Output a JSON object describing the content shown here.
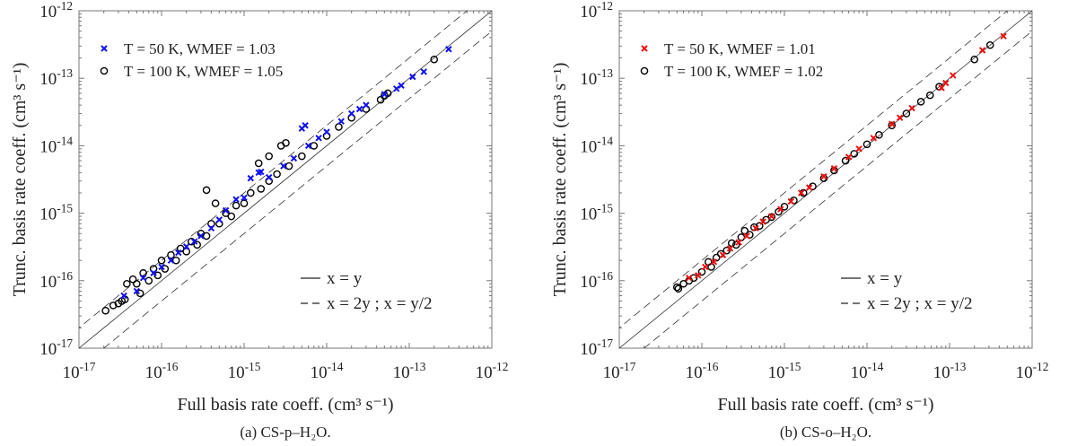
{
  "chart_data": [
    {
      "type": "scatter",
      "caption": "(a) CS-p–H₂O.",
      "xlabel": "Full basis rate coeff. (cm³ s⁻¹)",
      "ylabel": "Trunc. basis rate coeff. (cm³ s⁻¹)",
      "xscale": "log",
      "yscale": "log",
      "xlim": [
        1e-17,
        1e-12
      ],
      "ylim": [
        1e-17,
        1e-12
      ],
      "x_tick_labels": [
        "10^-17",
        "10^-16",
        "10^-15",
        "10^-14",
        "10^-13",
        "10^-12"
      ],
      "y_tick_labels": [
        "10^-17",
        "10^-16",
        "10^-15",
        "10^-14",
        "10^-13",
        "10^-12"
      ],
      "legend_placement": "top-left",
      "lines_legend_placement": "bottom-right",
      "lines": [
        {
          "label": "x = y",
          "style": "solid",
          "factor": 1
        },
        {
          "label": "x = 2y ; x = y/2",
          "style": "dashed",
          "factor": [
            2,
            0.5
          ]
        }
      ],
      "series": [
        {
          "name": "T = 50 K,   WMEF = 1.03",
          "marker": "x",
          "color": "#1010ee",
          "points": [
            [
              3.5e-17,
              6e-17
            ],
            [
              5e-17,
              7e-17
            ],
            [
              6e-17,
              1.1e-16
            ],
            [
              8e-17,
              1.3e-16
            ],
            [
              1e-16,
              1.6e-16
            ],
            [
              1.3e-16,
              2e-16
            ],
            [
              1.6e-16,
              2.6e-16
            ],
            [
              2e-16,
              3.2e-16
            ],
            [
              2.5e-16,
              3.8e-16
            ],
            [
              3e-16,
              4.6e-16
            ],
            [
              4e-16,
              6e-16
            ],
            [
              5e-16,
              8e-16
            ],
            [
              6e-16,
              1.1e-15
            ],
            [
              8e-16,
              1.6e-15
            ],
            [
              1e-15,
              1.7e-15
            ],
            [
              1.2e-15,
              3.3e-15
            ],
            [
              1.5e-15,
              4e-15
            ],
            [
              1.6e-15,
              4.1e-15
            ],
            [
              2e-15,
              3.4e-15
            ],
            [
              3e-15,
              5e-15
            ],
            [
              4e-15,
              6.5e-15
            ],
            [
              5e-15,
              1.8e-14
            ],
            [
              5.5e-15,
              2e-14
            ],
            [
              6e-15,
              1e-14
            ],
            [
              8e-15,
              1.3e-14
            ],
            [
              1e-14,
              1.6e-14
            ],
            [
              1.5e-14,
              2.3e-14
            ],
            [
              2e-14,
              3e-14
            ],
            [
              2.5e-14,
              3.5e-14
            ],
            [
              3e-14,
              4e-14
            ],
            [
              5e-14,
              5.8e-14
            ],
            [
              7e-14,
              7e-14
            ],
            [
              8e-14,
              7.8e-14
            ],
            [
              1.1e-13,
              1.05e-13
            ],
            [
              1.5e-13,
              1.25e-13
            ],
            [
              3e-13,
              2.7e-13
            ]
          ]
        },
        {
          "name": "T = 100 K,   WMEF = 1.05",
          "marker": "o",
          "color": "#000000",
          "points": [
            [
              2.1e-17,
              3.6e-17
            ],
            [
              2.6e-17,
              4.3e-17
            ],
            [
              3e-17,
              4.6e-17
            ],
            [
              3.3e-17,
              5e-17
            ],
            [
              3.6e-17,
              5.3e-17
            ],
            [
              3.8e-17,
              9e-17
            ],
            [
              4.5e-17,
              1.05e-16
            ],
            [
              5e-17,
              9e-17
            ],
            [
              5.5e-17,
              6.5e-17
            ],
            [
              6e-17,
              1.3e-16
            ],
            [
              7e-17,
              1e-16
            ],
            [
              8e-17,
              1.5e-16
            ],
            [
              9e-17,
              1.2e-16
            ],
            [
              1e-16,
              2e-16
            ],
            [
              1.1e-16,
              1.5e-16
            ],
            [
              1.3e-16,
              2.4e-16
            ],
            [
              1.5e-16,
              2e-16
            ],
            [
              1.7e-16,
              3e-16
            ],
            [
              2e-16,
              2.7e-16
            ],
            [
              2.3e-16,
              3.8e-16
            ],
            [
              2.7e-16,
              3.4e-16
            ],
            [
              3e-16,
              5e-16
            ],
            [
              3.5e-16,
              2.2e-15
            ],
            [
              3.5e-16,
              4.6e-16
            ],
            [
              4e-16,
              7e-16
            ],
            [
              4.5e-16,
              1.4e-15
            ],
            [
              5e-16,
              7e-16
            ],
            [
              6e-16,
              1e-15
            ],
            [
              7e-16,
              9e-16
            ],
            [
              8e-16,
              1.3e-15
            ],
            [
              1e-15,
              1.4e-15
            ],
            [
              1.2e-15,
              2e-15
            ],
            [
              1.5e-15,
              5.5e-15
            ],
            [
              1.6e-15,
              2.3e-15
            ],
            [
              2e-15,
              7e-15
            ],
            [
              2e-15,
              3e-15
            ],
            [
              2.5e-15,
              3.8e-15
            ],
            [
              2.8e-15,
              1e-14
            ],
            [
              3.2e-15,
              1.1e-14
            ],
            [
              3.5e-15,
              5e-15
            ],
            [
              5e-15,
              7e-15
            ],
            [
              7e-15,
              1e-14
            ],
            [
              1e-14,
              1.4e-14
            ],
            [
              1.4e-14,
              1.9e-14
            ],
            [
              2e-14,
              2.6e-14
            ],
            [
              3e-14,
              3.5e-14
            ],
            [
              4.5e-14,
              4.8e-14
            ],
            [
              5e-14,
              5.5e-14
            ],
            [
              5.5e-14,
              6e-14
            ],
            [
              2e-13,
              1.9e-13
            ]
          ]
        }
      ]
    },
    {
      "type": "scatter",
      "caption": "(b) CS-o–H₂O.",
      "xlabel": "Full basis rate coeff. (cm³ s⁻¹)",
      "ylabel": "Trunc. basis rate coeff. (cm³ s⁻¹)",
      "xscale": "log",
      "yscale": "log",
      "xlim": [
        1e-17,
        1e-12
      ],
      "ylim": [
        1e-17,
        1e-12
      ],
      "x_tick_labels": [
        "10^-17",
        "10^-16",
        "10^-15",
        "10^-14",
        "10^-13",
        "10^-12"
      ],
      "y_tick_labels": [
        "10^-17",
        "10^-16",
        "10^-15",
        "10^-14",
        "10^-13",
        "10^-12"
      ],
      "legend_placement": "top-left",
      "lines_legend_placement": "bottom-right",
      "lines": [
        {
          "label": "x = y",
          "style": "solid",
          "factor": 1
        },
        {
          "label": "x = 2y ; x = y/2",
          "style": "dashed",
          "factor": [
            2,
            0.5
          ]
        }
      ],
      "series": [
        {
          "name": "T = 50 K,   WMEF = 1.01",
          "marker": "x",
          "color": "#ee1010",
          "points": [
            [
              7e-17,
              1.1e-16
            ],
            [
              9e-17,
              1.2e-16
            ],
            [
              1.1e-16,
              1.6e-16
            ],
            [
              1.4e-16,
              1.9e-16
            ],
            [
              1.8e-16,
              2.4e-16
            ],
            [
              2.2e-16,
              3e-16
            ],
            [
              2.8e-16,
              3.7e-16
            ],
            [
              3.5e-16,
              4.6e-16
            ],
            [
              4.5e-16,
              6e-16
            ],
            [
              5.5e-16,
              7.5e-16
            ],
            [
              7e-16,
              9e-16
            ],
            [
              9e-16,
              1.15e-15
            ],
            [
              1.2e-15,
              1.5e-15
            ],
            [
              1.6e-15,
              2e-15
            ],
            [
              2e-15,
              2.4e-15
            ],
            [
              3e-15,
              3.5e-15
            ],
            [
              4e-15,
              4.6e-15
            ],
            [
              6e-15,
              6.8e-15
            ],
            [
              8e-15,
              9e-15
            ],
            [
              1.2e-14,
              1.3e-14
            ],
            [
              2e-14,
              2.1e-14
            ],
            [
              2.5e-14,
              2.6e-14
            ],
            [
              3.5e-14,
              3.6e-14
            ],
            [
              8e-14,
              7.2e-14
            ],
            [
              9e-14,
              8.5e-14
            ],
            [
              1.1e-13,
              1.1e-13
            ],
            [
              2.5e-13,
              2.6e-13
            ],
            [
              4.5e-13,
              4.2e-13
            ]
          ]
        },
        {
          "name": "T = 100 K,   WMEF = 1.02",
          "marker": "o",
          "color": "#000000",
          "points": [
            [
              5e-17,
              8e-17
            ],
            [
              5.2e-17,
              7.6e-17
            ],
            [
              6e-17,
              9e-17
            ],
            [
              7e-17,
              1e-16
            ],
            [
              8e-17,
              1.1e-16
            ],
            [
              1e-16,
              1.35e-16
            ],
            [
              1.2e-16,
              1.9e-16
            ],
            [
              1.3e-16,
              1.6e-16
            ],
            [
              1.5e-16,
              2.2e-16
            ],
            [
              1.7e-16,
              2.5e-16
            ],
            [
              2e-16,
              2.8e-16
            ],
            [
              2.3e-16,
              3.6e-16
            ],
            [
              2.6e-16,
              3.4e-16
            ],
            [
              3e-16,
              4.4e-16
            ],
            [
              3.3e-16,
              5.5e-16
            ],
            [
              3.8e-16,
              4.8e-16
            ],
            [
              4.3e-16,
              6.2e-16
            ],
            [
              5e-16,
              6.5e-16
            ],
            [
              6e-16,
              8e-16
            ],
            [
              7e-16,
              8.8e-16
            ],
            [
              8.5e-16,
              1.05e-15
            ],
            [
              1e-15,
              1.25e-15
            ],
            [
              1.3e-15,
              1.55e-15
            ],
            [
              1.7e-15,
              2e-15
            ],
            [
              2.2e-15,
              2.5e-15
            ],
            [
              3e-15,
              3.3e-15
            ],
            [
              4e-15,
              4.3e-15
            ],
            [
              5.5e-15,
              6e-15
            ],
            [
              7e-15,
              7.6e-15
            ],
            [
              1e-14,
              1.05e-14
            ],
            [
              1.4e-14,
              1.45e-14
            ],
            [
              2e-14,
              2e-14
            ],
            [
              3e-14,
              3e-14
            ],
            [
              4.5e-14,
              4.5e-14
            ],
            [
              5.8e-14,
              5.6e-14
            ],
            [
              7.5e-14,
              7.5e-14
            ],
            [
              2e-13,
              1.9e-13
            ],
            [
              3.1e-13,
              3.1e-13
            ]
          ]
        }
      ]
    }
  ]
}
